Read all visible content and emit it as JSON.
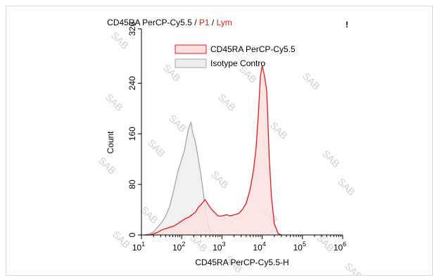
{
  "chart_data": {
    "type": "area",
    "title_parts": [
      {
        "text": "CD45RA PerCP-Cy5.5",
        "color": "#000000"
      },
      {
        "text": " / ",
        "color": "#000000"
      },
      {
        "text": "P1",
        "color": "#e31a1c"
      },
      {
        "text": " / ",
        "color": "#000000"
      },
      {
        "text": "Lym",
        "color": "#e31a1c"
      }
    ],
    "corner_mark": "!",
    "xlabel": "CD45RA PerCP-Cy5.5-H",
    "ylabel": "Count",
    "x_scale": "log",
    "xlim": [
      10,
      1000000
    ],
    "ylim": [
      0,
      326
    ],
    "y_ticks": [
      "0",
      "80",
      "160",
      "240",
      "326"
    ],
    "y_tick_values": [
      0,
      80,
      160,
      240,
      326
    ],
    "x_tick_exponents": [
      "1",
      "2",
      "3",
      "4",
      "5",
      "6"
    ],
    "x_tick_values": [
      10,
      100,
      1000,
      10000,
      100000,
      1000000
    ],
    "watermark": "SAB",
    "series": [
      {
        "name": "CD45RA PerCP-Cy5.5",
        "stroke": "#e31a1c",
        "fill": "#fde0e0",
        "points": [
          [
            12,
            0
          ],
          [
            16,
            0
          ],
          [
            20,
            2
          ],
          [
            25,
            4
          ],
          [
            32,
            8
          ],
          [
            40,
            10
          ],
          [
            50,
            12
          ],
          [
            63,
            14
          ],
          [
            80,
            18
          ],
          [
            100,
            22
          ],
          [
            125,
            26
          ],
          [
            150,
            28
          ],
          [
            180,
            32
          ],
          [
            220,
            36
          ],
          [
            260,
            44
          ],
          [
            300,
            48
          ],
          [
            340,
            52
          ],
          [
            380,
            56
          ],
          [
            420,
            52
          ],
          [
            480,
            46
          ],
          [
            560,
            40
          ],
          [
            650,
            36
          ],
          [
            800,
            30
          ],
          [
            1000,
            30
          ],
          [
            1300,
            32
          ],
          [
            1600,
            30
          ],
          [
            2000,
            32
          ],
          [
            2600,
            34
          ],
          [
            3200,
            40
          ],
          [
            4000,
            50
          ],
          [
            5000,
            72
          ],
          [
            6000,
            100
          ],
          [
            7000,
            135
          ],
          [
            8000,
            190
          ],
          [
            9000,
            250
          ],
          [
            10000,
            268
          ],
          [
            11500,
            250
          ],
          [
            13000,
            228
          ],
          [
            15000,
            120
          ],
          [
            17000,
            60
          ],
          [
            20000,
            18
          ],
          [
            25000,
            2
          ],
          [
            30000,
            0
          ]
        ]
      },
      {
        "name": "Isotype Contro",
        "stroke": "#a6a6a6",
        "fill": "#ededed",
        "points": [
          [
            12,
            0
          ],
          [
            16,
            2
          ],
          [
            20,
            5
          ],
          [
            25,
            12
          ],
          [
            32,
            20
          ],
          [
            40,
            30
          ],
          [
            50,
            45
          ],
          [
            63,
            70
          ],
          [
            80,
            100
          ],
          [
            100,
            120
          ],
          [
            115,
            132
          ],
          [
            130,
            150
          ],
          [
            150,
            170
          ],
          [
            170,
            178
          ],
          [
            190,
            160
          ],
          [
            210,
            152
          ],
          [
            230,
            140
          ],
          [
            260,
            120
          ],
          [
            300,
            95
          ],
          [
            340,
            70
          ],
          [
            400,
            35
          ],
          [
            480,
            10
          ],
          [
            560,
            2
          ],
          [
            650,
            0
          ]
        ]
      }
    ]
  }
}
